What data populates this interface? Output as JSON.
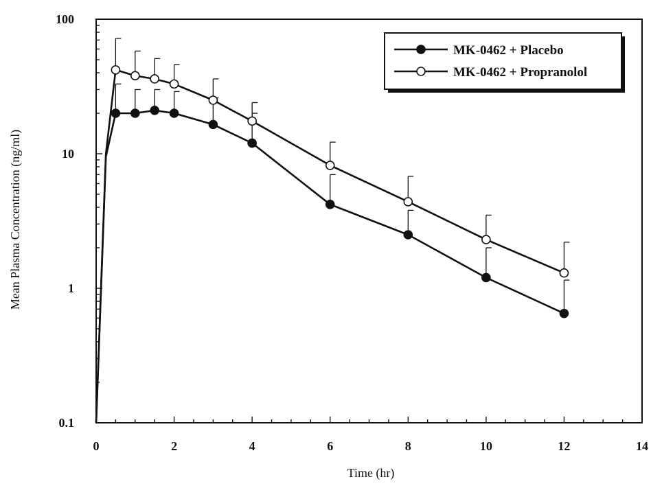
{
  "chart_data": {
    "type": "line",
    "title": "",
    "xlabel": "Time (hr)",
    "ylabel": "Mean Plasma Concentration (ng/ml)",
    "xlim": [
      0,
      14
    ],
    "ylim": [
      0.1,
      100
    ],
    "yscale": "log",
    "x_ticks": [
      0,
      2,
      4,
      6,
      8,
      10,
      12,
      14
    ],
    "x_tick_labels": [
      "0",
      "2",
      "4",
      "6",
      "8",
      "10",
      "12",
      "14"
    ],
    "y_ticks": [
      0.1,
      1,
      10,
      100
    ],
    "y_tick_labels": [
      "0.1",
      "1",
      "10",
      "100"
    ],
    "grid": false,
    "legend_position": "top-right",
    "series": [
      {
        "name": "MK-0462 + Placebo",
        "marker": "filled-circle",
        "x": [
          0,
          0.25,
          0.5,
          1,
          1.5,
          2,
          3,
          4,
          6,
          8,
          10,
          12
        ],
        "y": [
          0.1,
          9.5,
          20,
          20,
          21,
          20,
          16.5,
          12,
          4.2,
          2.5,
          1.2,
          0.65
        ],
        "error_upper": [
          null,
          null,
          33,
          30,
          30,
          29,
          26,
          20,
          7,
          3.8,
          2,
          1.15
        ]
      },
      {
        "name": "MK-0462 + Propranolol",
        "marker": "open-circle",
        "x": [
          0,
          0.25,
          0.5,
          1,
          1.5,
          2,
          3,
          4,
          6,
          8,
          10,
          12
        ],
        "y": [
          0.1,
          10,
          42,
          38,
          36,
          33,
          25,
          17.5,
          8.2,
          4.4,
          2.3,
          1.3
        ],
        "error_upper": [
          null,
          null,
          72,
          58,
          51,
          46,
          36,
          24,
          12.2,
          6.8,
          3.5,
          2.2
        ]
      }
    ]
  }
}
